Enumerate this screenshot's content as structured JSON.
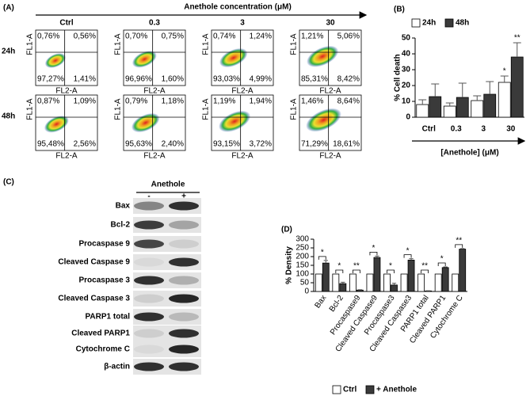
{
  "panel_a": {
    "label": "(A)",
    "title": "Anethole concentration (μM)",
    "columns": [
      "Ctrl",
      "0.3",
      "3",
      "30"
    ],
    "rows": [
      "24h",
      "48h"
    ],
    "x_axis_label": "FL2-A",
    "y_axis_label": "FL1-A",
    "plots": [
      [
        [
          "0,76%",
          "0,56%",
          "97,27%",
          "1,41%"
        ],
        [
          "0,70%",
          "0,75%",
          "96,96%",
          "1,60%"
        ],
        [
          "0,74%",
          "1,24%",
          "93,03%",
          "4,99%"
        ],
        [
          "1,21%",
          "5,06%",
          "85,31%",
          "8,42%"
        ]
      ],
      [
        [
          "0,87%",
          "1,09%",
          "95,48%",
          "2,56%"
        ],
        [
          "0,79%",
          "1,18%",
          "95,63%",
          "2,40%"
        ],
        [
          "1,19%",
          "1,94%",
          "93,15%",
          "3,72%"
        ],
        [
          "1,46%",
          "8,64%",
          "71,29%",
          "18,61%"
        ]
      ]
    ]
  },
  "panel_c": {
    "label": "(C)",
    "treatment": "Anethole",
    "lanes": [
      "-",
      "+"
    ],
    "proteins": [
      "Bax",
      "Bcl-2",
      "Procaspase 9",
      "Cleaved Caspase 9",
      "Procaspase 3",
      "Cleaved Caspase 3",
      "PARP1 total",
      "Cleaved PARP1",
      "Cytochrome C",
      "β-actin"
    ]
  },
  "chart_data": [
    {
      "type": "bar",
      "label": "(B)",
      "y_label": "% Cell death",
      "x_label": "[Anethole] (μM)",
      "categories": [
        "Ctrl",
        "0.3",
        "3",
        "30"
      ],
      "series": [
        {
          "name": "24h",
          "color": "#ffffff",
          "values": [
            8,
            7,
            10.5,
            22
          ],
          "errors": [
            3,
            2,
            3,
            4
          ],
          "significance": [
            null,
            null,
            null,
            "*"
          ]
        },
        {
          "name": "48h",
          "color": "#3a3a3a",
          "values": [
            13,
            12.5,
            14.5,
            38
          ],
          "errors": [
            8,
            9,
            8,
            9
          ],
          "significance": [
            null,
            null,
            null,
            "**"
          ]
        }
      ],
      "ylim": [
        0,
        50
      ],
      "yticks": [
        0,
        10,
        20,
        30,
        40,
        50
      ]
    },
    {
      "type": "bar",
      "label": "(D)",
      "y_label": "% Density",
      "categories": [
        "Bax",
        "Bcl-2",
        "Procaspase9",
        "Cleaved Caspase9",
        "Procaspase3",
        "Cleaved Caspase3",
        "PARP1 total",
        "Cleaved PARP1",
        "Cytochrome C"
      ],
      "series": [
        {
          "name": "Ctrl",
          "color": "#ffffff",
          "values": [
            100,
            100,
            100,
            100,
            100,
            100,
            100,
            100,
            100
          ]
        },
        {
          "name": "+ Anethole",
          "color": "#3a3a3a",
          "values": [
            163,
            45,
            8,
            195,
            37,
            180,
            3,
            137,
            243
          ],
          "errors": [
            15,
            8,
            2,
            8,
            10,
            8,
            1,
            4,
            3
          ]
        }
      ],
      "significance": [
        "*",
        "*",
        "**",
        "*",
        "*",
        "*",
        "**",
        "*",
        "**"
      ],
      "ylim": [
        0,
        300
      ],
      "yticks": [
        0,
        50,
        100,
        150,
        200,
        250,
        300
      ]
    }
  ]
}
